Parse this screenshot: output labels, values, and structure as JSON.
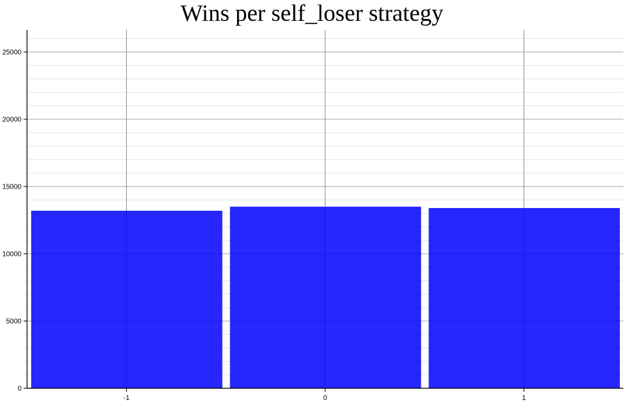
{
  "chart_data": {
    "type": "bar",
    "title": "Wins per self_loser strategy",
    "xlabel": "",
    "ylabel": "",
    "categories": [
      "-1",
      "0",
      "1"
    ],
    "values": [
      13200,
      13500,
      13400
    ],
    "ylim": [
      0,
      26650
    ],
    "yticks": [
      "0",
      "5000",
      "10000",
      "15000",
      "20000",
      "25000"
    ],
    "grid": true,
    "bar_color": "#0000ff"
  }
}
